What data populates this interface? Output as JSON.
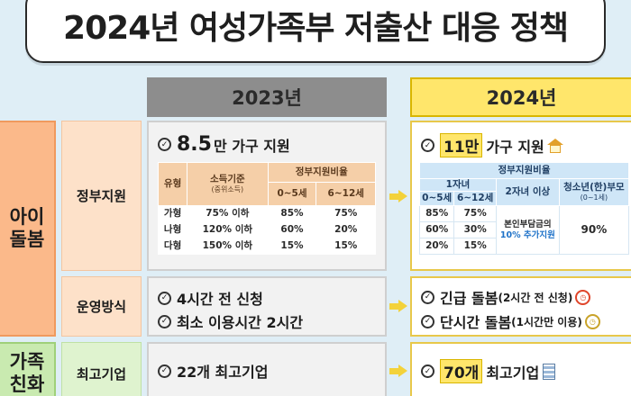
{
  "title": "2024년 여성가족부 저출산 대응 정책",
  "years": {
    "y2023": "2023년",
    "y2024": "2024년"
  },
  "categories": {
    "care": "아이\n돌봄",
    "family": "가족\n친화"
  },
  "subcategories": {
    "gov": "정부지원",
    "op": "운영방식",
    "top": "최고기업"
  },
  "p2023": {
    "gov_headline_num": "8.5",
    "gov_headline_rest": "만 가구 지원",
    "table": {
      "col_type": "유형",
      "col_income": "소득기준",
      "col_income_note": "(중위소득)",
      "col_ratio": "정부지원비율",
      "age1": "0~5세",
      "age2": "6~12세",
      "rows": [
        {
          "type": "가형",
          "income": "75% 이하",
          "a": "85%",
          "b": "75%"
        },
        {
          "type": "나형",
          "income": "120% 이하",
          "a": "60%",
          "b": "20%"
        },
        {
          "type": "다형",
          "income": "150% 이하",
          "a": "15%",
          "b": "15%"
        }
      ]
    },
    "op_line1": "4시간 전 신청",
    "op_line2": "최소 이용시간 2시간",
    "top_line": "22개 최고기업"
  },
  "p2024": {
    "gov_headline_num": "11만",
    "gov_headline_rest": "가구 지원",
    "table": {
      "col_ratio": "정부지원비율",
      "first_child": "1자녀",
      "age1": "0~5세",
      "age2": "6~12세",
      "second_child": "2자녀 이상",
      "teen": "청소년(한)부모",
      "teen_note": "(0~1세)",
      "rows": [
        {
          "a": "85%",
          "b": "75%"
        },
        {
          "a": "60%",
          "b": "30%"
        },
        {
          "a": "20%",
          "b": "15%"
        }
      ],
      "second_note_1": "본인부담금의",
      "second_note_2": "10% 추가지원",
      "teen_value": "90%"
    },
    "op_item1_bold": "긴급 돌봄",
    "op_item1_rest": "(2시간 전 신청)",
    "op_item2_bold": "단시간 돌봄",
    "op_item2_rest": "(1시간만 이용)",
    "top_num": "70개",
    "top_rest": "최고기업"
  },
  "icons": {
    "check": "check-circle-icon",
    "house": "house-icon",
    "clock": "alarm-clock-icon",
    "building": "building-icon"
  },
  "colors": {
    "accent_yellow": "#ffe66b",
    "care_orange": "#fbb98a",
    "family_green": "#c9eab0",
    "header_gray": "#8d8d8d",
    "blue_text": "#1e72c8"
  }
}
